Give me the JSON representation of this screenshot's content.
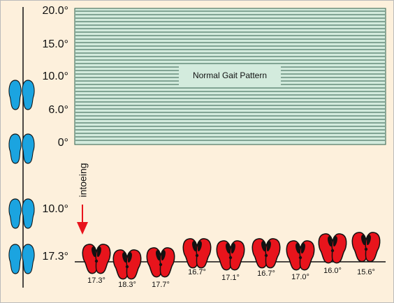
{
  "scale": {
    "labels": [
      "20.0°",
      "15.0°",
      "10.0°",
      "6.0°",
      "0°",
      "10.0°",
      "17.3°"
    ]
  },
  "normal_box": {
    "label": "Normal Gait Pattern"
  },
  "arrow": {
    "label": "intoeing"
  },
  "trials": [
    {
      "label": "17.3°"
    },
    {
      "label": "18.3°"
    },
    {
      "label": "17.7°"
    },
    {
      "label": "16.7°"
    },
    {
      "label": "17.1°"
    },
    {
      "label": "16.7°"
    },
    {
      "label": "17.0°"
    },
    {
      "label": "16.0°"
    },
    {
      "label": "15.6°"
    }
  ]
}
